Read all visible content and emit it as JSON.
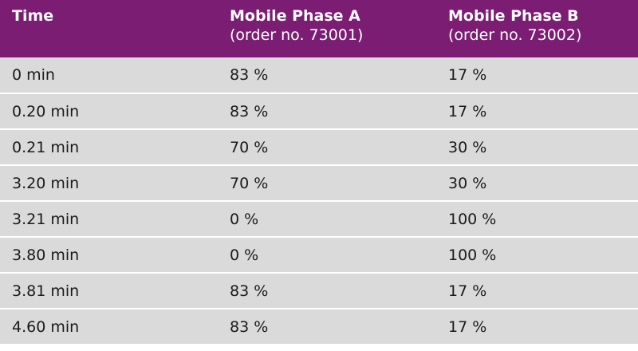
{
  "table": {
    "headers": [
      {
        "title": "Time",
        "sub": ""
      },
      {
        "title": "Mobile Phase A",
        "sub": "(order no. 73001)"
      },
      {
        "title": "Mobile Phase B",
        "sub": "(order no. 73002)"
      }
    ],
    "rows": [
      [
        "0 min",
        "83 %",
        "17 %"
      ],
      [
        "0.20 min",
        "83 %",
        "17 %"
      ],
      [
        "0.21 min",
        "70 %",
        "30 %"
      ],
      [
        "3.20 min",
        "70 %",
        "30 %"
      ],
      [
        "3.21 min",
        "0 %",
        "100 %"
      ],
      [
        "3.80 min",
        "0 %",
        "100 %"
      ],
      [
        "3.81 min",
        "83 %",
        "17 %"
      ],
      [
        "4.60 min",
        "83 %",
        "17 %"
      ]
    ]
  },
  "colors": {
    "header_bg": "#7a1d73",
    "header_text": "#ffffff",
    "row_bg": "#dadada",
    "row_divider": "#ffffff"
  }
}
